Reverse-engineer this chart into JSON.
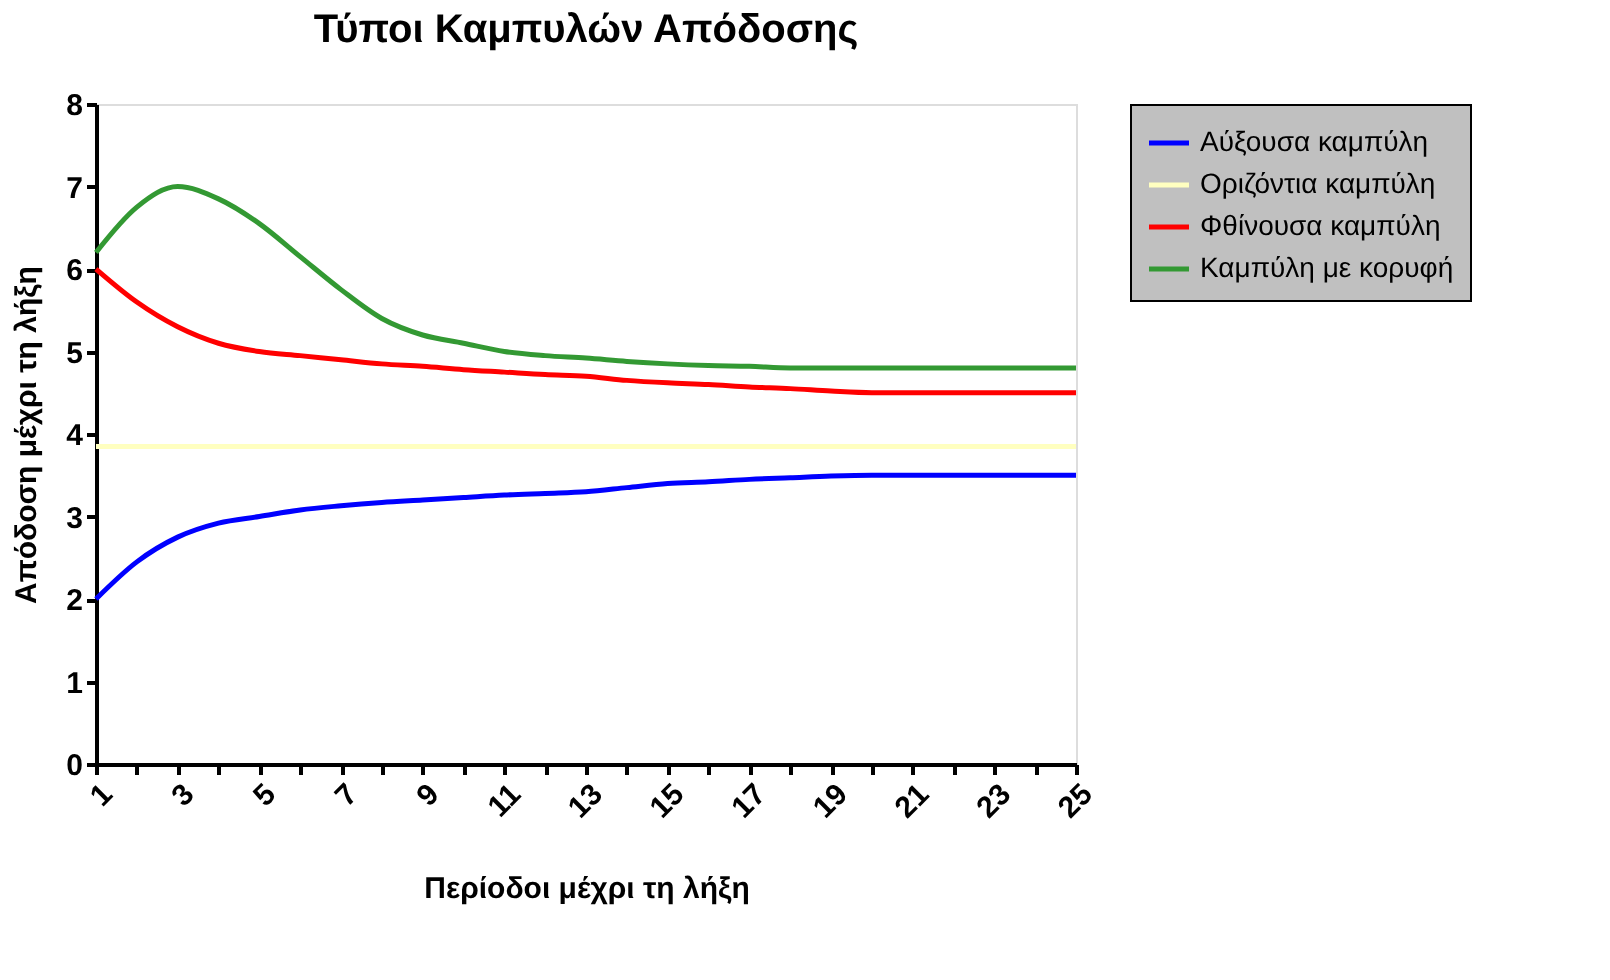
{
  "chart_data": {
    "type": "line",
    "title": "Τύποι Καμπυλών Απόδοσης",
    "xlabel": "Περίοδοι μέχρι τη λήξη",
    "ylabel": "Απόδοση μέχρι τη λήξη",
    "x": [
      1,
      2,
      3,
      4,
      5,
      6,
      7,
      8,
      9,
      10,
      11,
      12,
      13,
      14,
      15,
      16,
      17,
      18,
      19,
      20,
      21,
      22,
      23,
      24,
      25
    ],
    "xlim": [
      1,
      25
    ],
    "ylim": [
      0,
      8
    ],
    "yticks": [
      0,
      1,
      2,
      3,
      4,
      5,
      6,
      7,
      8
    ],
    "xticks": [
      1,
      {
        "value": 2,
        "label": null
      },
      3,
      {
        "value": 4,
        "label": null
      },
      5,
      {
        "value": 6,
        "label": null
      },
      7,
      {
        "value": 8,
        "label": null
      },
      9,
      {
        "value": 10,
        "label": null
      },
      11,
      {
        "value": 12,
        "label": null
      },
      13,
      {
        "value": 14,
        "label": null
      },
      15,
      {
        "value": 16,
        "label": null
      },
      17,
      {
        "value": 18,
        "label": null
      },
      19,
      {
        "value": 20,
        "label": null
      },
      21,
      {
        "value": 22,
        "label": null
      },
      23,
      {
        "value": 24,
        "label": null
      },
      25
    ],
    "grid": false,
    "legend": "right",
    "line_style": "solid",
    "marker": "none",
    "series": [
      {
        "name": "Αύξουσα καμπύλη",
        "color": "#0000ff",
        "values": [
          2.0,
          2.45,
          2.75,
          2.92,
          3.0,
          3.08,
          3.13,
          3.17,
          3.2,
          3.23,
          3.26,
          3.28,
          3.3,
          3.35,
          3.4,
          3.42,
          3.45,
          3.47,
          3.49,
          3.5,
          3.5,
          3.5,
          3.5,
          3.5,
          3.5
        ]
      },
      {
        "name": "Οριζόντια καμπύλη",
        "color": "#ffffc0",
        "values": [
          3.85,
          3.85,
          3.85,
          3.85,
          3.85,
          3.85,
          3.85,
          3.85,
          3.85,
          3.85,
          3.85,
          3.85,
          3.85,
          3.85,
          3.85,
          3.85,
          3.85,
          3.85,
          3.85,
          3.85,
          3.85,
          3.85,
          3.85,
          3.85,
          3.85
        ]
      },
      {
        "name": "Φθίνουσα καμπύλη",
        "color": "#ff0000",
        "values": [
          6.0,
          5.6,
          5.3,
          5.1,
          5.0,
          4.95,
          4.9,
          4.85,
          4.82,
          4.78,
          4.75,
          4.72,
          4.7,
          4.65,
          4.62,
          4.6,
          4.57,
          4.55,
          4.52,
          4.5,
          4.5,
          4.5,
          4.5,
          4.5,
          4.5
        ]
      },
      {
        "name": "Καμπύλη με κορυφή",
        "color": "#339933",
        "values": [
          6.2,
          6.75,
          7.0,
          6.85,
          6.55,
          6.15,
          5.75,
          5.4,
          5.2,
          5.1,
          5.0,
          4.95,
          4.92,
          4.88,
          4.85,
          4.83,
          4.82,
          4.8,
          4.8,
          4.8,
          4.8,
          4.8,
          4.8,
          4.8,
          4.8
        ]
      }
    ]
  }
}
